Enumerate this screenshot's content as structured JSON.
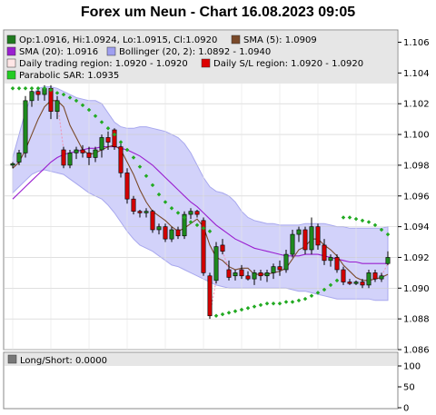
{
  "chart_data": {
    "type": "candlestick",
    "title": "Forex um Neun - Chart 16.08.2023 09:05",
    "ylim": [
      1.086,
      1.1068
    ],
    "yticks": [
      "1.106",
      "1.104",
      "1.102",
      "1.100",
      "1.098",
      "1.096",
      "1.094",
      "1.092",
      "1.090",
      "1.088",
      "1.086"
    ],
    "legend": [
      {
        "label": "Op:1.0916, Hi:1.0924, Lo:1.0915, Cl:1.0920",
        "color": "#1e7a1e"
      },
      {
        "label": "SMA (5): 1.0909",
        "color": "#7a4a2a"
      },
      {
        "label": "SMA (20): 1.0916",
        "color": "#9a1fd0"
      },
      {
        "label": "Bollinger (20, 2): 1.0892 - 1.0940",
        "color": "#9f9ff0"
      },
      {
        "label": "Daily trading region: 1.0920 - 1.0920",
        "color": "#ffe6e6"
      },
      {
        "label": "Daily S/L region: 1.0920 - 1.0920",
        "color": "#dd0000"
      },
      {
        "label": "Parabolic SAR: 1.0935",
        "color": "#22cc22"
      }
    ],
    "candles": [
      [
        1.098,
        1.0982,
        1.0978,
        1.0981
      ],
      [
        1.0982,
        1.099,
        1.098,
        1.0988
      ],
      [
        1.0988,
        1.1025,
        1.0985,
        1.1022
      ],
      [
        1.1022,
        1.103,
        1.1018,
        1.1028
      ],
      [
        1.1028,
        1.103,
        1.1022,
        1.1026
      ],
      [
        1.1026,
        1.1032,
        1.1022,
        1.103
      ],
      [
        1.103,
        1.1032,
        1.101,
        1.1015
      ],
      [
        1.1015,
        1.1025,
        1.101,
        1.1022
      ],
      [
        1.099,
        1.0992,
        1.0978,
        1.098
      ],
      [
        1.098,
        1.099,
        1.0978,
        1.0988
      ],
      [
        1.0988,
        1.0992,
        1.0984,
        1.099
      ],
      [
        1.099,
        1.0993,
        1.0985,
        1.0988
      ],
      [
        1.0988,
        1.0992,
        1.098,
        1.0985
      ],
      [
        1.0985,
        1.0992,
        1.0982,
        1.099
      ],
      [
        1.099,
        1.1,
        1.0985,
        1.0998
      ],
      [
        1.0998,
        1.1002,
        1.099,
        1.0995
      ],
      [
        1.1003,
        1.1004,
        1.099,
        1.0992
      ],
      [
        1.0992,
        1.0995,
        1.0972,
        1.0975
      ],
      [
        1.0975,
        1.0978,
        1.0955,
        1.0958
      ],
      [
        1.0958,
        1.096,
        1.0948,
        1.095
      ],
      [
        1.095,
        1.0951,
        1.0946,
        1.0949
      ],
      [
        1.0949,
        1.0952,
        1.0946,
        1.095
      ],
      [
        1.095,
        1.0951,
        1.0936,
        1.0938
      ],
      [
        1.0938,
        1.0942,
        1.0935,
        1.094
      ],
      [
        1.094,
        1.0942,
        1.093,
        1.0932
      ],
      [
        1.0932,
        1.094,
        1.093,
        1.0938
      ],
      [
        1.0938,
        1.094,
        1.0932,
        1.0934
      ],
      [
        1.0934,
        1.095,
        1.0932,
        1.0948
      ],
      [
        1.0948,
        1.0952,
        1.0945,
        1.095
      ],
      [
        1.095,
        1.0951,
        1.0946,
        1.0948
      ],
      [
        1.0944,
        1.0946,
        1.0908,
        1.091
      ],
      [
        1.0908,
        1.091,
        1.088,
        1.0882
      ],
      [
        1.0905,
        1.093,
        1.0903,
        1.0927
      ],
      [
        1.0928,
        1.0932,
        1.0922,
        1.0924
      ],
      [
        1.0912,
        1.0918,
        1.0905,
        1.0907
      ],
      [
        1.0908,
        1.0912,
        1.0905,
        1.091
      ],
      [
        1.0912,
        1.0915,
        1.0906,
        1.0908
      ],
      [
        1.0908,
        1.0911,
        1.0905,
        1.0906
      ],
      [
        1.0906,
        1.0912,
        1.0902,
        1.091
      ],
      [
        1.091,
        1.0912,
        1.0905,
        1.0908
      ],
      [
        1.0908,
        1.0912,
        1.0904,
        1.091
      ],
      [
        1.091,
        1.0916,
        1.0906,
        1.0914
      ],
      [
        1.0914,
        1.0918,
        1.0908,
        1.0912
      ],
      [
        1.0912,
        1.0925,
        1.091,
        1.0922
      ],
      [
        1.0922,
        1.0938,
        1.092,
        1.0935
      ],
      [
        1.0935,
        1.094,
        1.093,
        1.0938
      ],
      [
        1.0938,
        1.094,
        1.0922,
        1.0925
      ],
      [
        1.0925,
        1.0946,
        1.0922,
        1.094
      ],
      [
        1.094,
        1.0942,
        1.0925,
        1.0928
      ],
      [
        1.0928,
        1.0932,
        1.0915,
        1.0918
      ],
      [
        1.0918,
        1.0922,
        1.0914,
        1.092
      ],
      [
        1.092,
        1.0922,
        1.091,
        1.0912
      ],
      [
        1.0912,
        1.0914,
        1.0902,
        1.0904
      ],
      [
        1.0904,
        1.0906,
        1.0902,
        1.0903
      ],
      [
        1.0903,
        1.0905,
        1.0902,
        1.0904
      ],
      [
        1.0904,
        1.0906,
        1.09,
        1.0902
      ],
      [
        1.0902,
        1.0912,
        1.09,
        1.091
      ],
      [
        1.091,
        1.0912,
        1.0904,
        1.0906
      ],
      [
        1.0906,
        1.091,
        1.0904,
        1.0908
      ],
      [
        1.0916,
        1.0924,
        1.0915,
        1.092
      ]
    ],
    "sma5": [
      1.0978,
      1.0982,
      1.099,
      1.1,
      1.101,
      1.1018,
      1.1022,
      1.1022,
      1.1018,
      1.1006,
      1.0998,
      1.099,
      1.0987,
      1.0988,
      1.099,
      1.0992,
      1.0993,
      1.099,
      1.0982,
      1.0974,
      1.0964,
      1.0956,
      1.095,
      1.0947,
      1.0944,
      1.094,
      1.0937,
      1.0939,
      1.0942,
      1.0945,
      1.094,
      1.0928,
      1.092,
      1.0918,
      1.0914,
      1.0912,
      1.0913,
      1.0913,
      1.0909,
      1.0909,
      1.0909,
      1.091,
      1.0911,
      1.0913,
      1.0919,
      1.0925,
      1.0927,
      1.0932,
      1.0932,
      1.0928,
      1.0925,
      1.0921,
      1.0915,
      1.0911,
      1.0907,
      1.0905,
      1.0905,
      1.0906,
      1.0907,
      1.0909
    ],
    "sma20": [
      1.0958,
      1.0962,
      1.0966,
      1.097,
      1.0974,
      1.0978,
      1.0982,
      1.0985,
      1.0987,
      1.0988,
      1.0989,
      1.099,
      1.0991,
      1.0991,
      1.0992,
      1.0992,
      1.0992,
      1.0991,
      1.099,
      1.0988,
      1.0986,
      1.0983,
      1.098,
      1.0976,
      1.0972,
      1.0968,
      1.0964,
      1.096,
      1.0956,
      1.0953,
      1.0949,
      1.0945,
      1.0941,
      1.0938,
      1.0935,
      1.0932,
      1.093,
      1.0928,
      1.0926,
      1.0925,
      1.0924,
      1.0923,
      1.0922,
      1.0921,
      1.0921,
      1.0921,
      1.0922,
      1.0922,
      1.0922,
      1.0921,
      1.092,
      1.0919,
      1.0918,
      1.0917,
      1.0917,
      1.0916,
      1.0916,
      1.0916,
      1.0916,
      1.0916
    ],
    "bb_upper": [
      1.0985,
      1.1,
      1.1015,
      1.1025,
      1.103,
      1.1031,
      1.1031,
      1.103,
      1.1028,
      1.1026,
      1.1024,
      1.1023,
      1.1022,
      1.1022,
      1.102,
      1.1014,
      1.1008,
      1.1005,
      1.1004,
      1.1004,
      1.1005,
      1.1005,
      1.1004,
      1.1003,
      1.1002,
      1.1,
      1.0998,
      1.0994,
      1.0988,
      1.098,
      1.0972,
      1.0966,
      1.0963,
      1.0962,
      1.096,
      1.0956,
      1.095,
      1.0946,
      1.0944,
      1.0943,
      1.0942,
      1.0942,
      1.0941,
      1.0941,
      1.0941,
      1.0941,
      1.0942,
      1.0942,
      1.0942,
      1.0942,
      1.0941,
      1.094,
      1.094,
      1.0939,
      1.0939,
      1.0939,
      1.0939,
      1.0939,
      1.0939,
      1.094
    ],
    "bb_lower": [
      1.0962,
      1.0966,
      1.097,
      1.0974,
      1.0976,
      1.0977,
      1.0976,
      1.0975,
      1.0974,
      1.0971,
      1.0968,
      1.0965,
      1.0962,
      1.096,
      1.0958,
      1.0954,
      1.0949,
      1.0943,
      1.0937,
      1.0932,
      1.0928,
      1.0926,
      1.0924,
      1.0921,
      1.0918,
      1.0915,
      1.0914,
      1.0912,
      1.091,
      1.0908,
      1.0906,
      1.0904,
      1.0902,
      1.0901,
      1.09,
      1.09,
      1.09,
      1.09,
      1.09,
      1.09,
      1.09,
      1.09,
      1.09,
      1.09,
      1.0899,
      1.0898,
      1.0898,
      1.0897,
      1.0896,
      1.0895,
      1.0894,
      1.0893,
      1.0893,
      1.0893,
      1.0893,
      1.0893,
      1.0893,
      1.0892,
      1.0892,
      1.0892
    ],
    "sar": [
      1.103,
      1.103,
      1.103,
      1.103,
      1.103,
      1.103,
      1.1029,
      1.1027,
      1.1026,
      1.1024,
      1.1022,
      1.1019,
      1.1016,
      1.1012,
      1.1008,
      1.1004,
      1.1,
      1.0995,
      1.099,
      1.0985,
      1.0979,
      1.0973,
      1.0967,
      1.0961,
      1.0956,
      1.0952,
      1.0949,
      1.0946,
      1.0943,
      1.0941,
      1.0939,
      1.0937,
      1.0882,
      1.0883,
      1.0884,
      1.0885,
      1.0886,
      1.0887,
      1.0888,
      1.0889,
      1.089,
      1.089,
      1.089,
      1.0891,
      1.0891,
      1.0892,
      1.0893,
      1.0895,
      1.0897,
      1.0899,
      1.0902,
      1.0905,
      1.0946,
      1.0946,
      1.0945,
      1.0944,
      1.0943,
      1.0941,
      1.0938,
      1.0935
    ],
    "sub_panel": {
      "legend": "Long/Short: 0.0000",
      "yticks": [
        "100",
        "50",
        "0"
      ]
    }
  }
}
